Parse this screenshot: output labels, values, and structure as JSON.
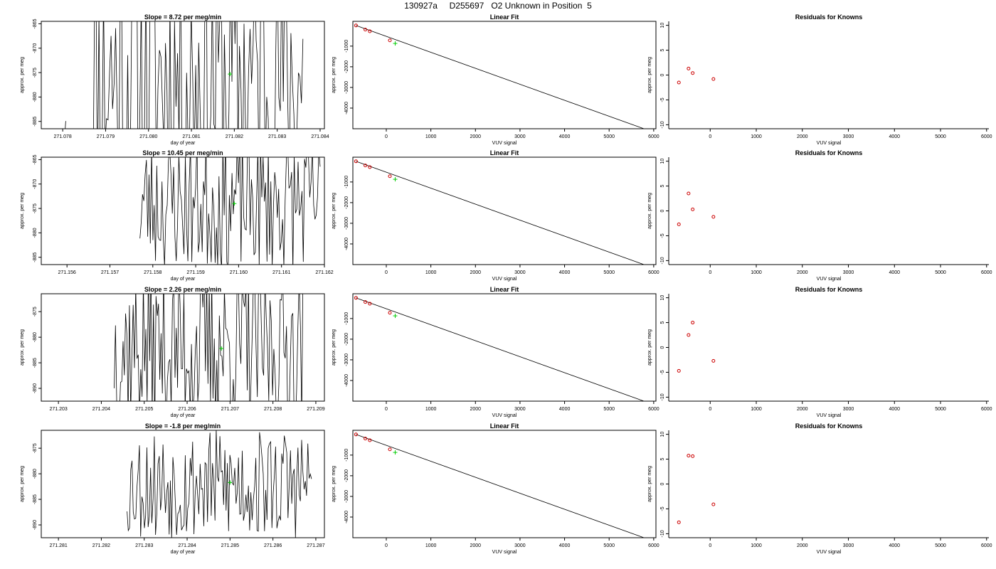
{
  "title": "130927a     D255697   O2 Unknown in Position  5",
  "colors": {
    "line": "#000000",
    "point_known": "#cc0000",
    "point_unknown": "#00cc00",
    "axis": "#000000"
  },
  "chart_data": [
    {
      "type": "line",
      "row": 0,
      "panel": "timeseries",
      "title": "Slope =  8.72  per meg/min",
      "xlabel": "day of year",
      "ylabel": "approx. per meg",
      "xlim": [
        271.0775,
        271.0841
      ],
      "ylim": [
        -886.5,
        -864.5
      ],
      "xticks": [
        271.078,
        271.079,
        271.08,
        271.081,
        271.082,
        271.083,
        271.084
      ],
      "xtick_labels": [
        "271.078",
        "271.079",
        "271.080",
        "271.081",
        "271.082",
        "271.083",
        "271.084"
      ],
      "yticks": [
        -865,
        -870,
        -875,
        -880,
        -885
      ],
      "ytick_labels": [
        "-865",
        "-870",
        "-875",
        "-880",
        "-885"
      ],
      "series": [
        {
          "x_start": 271.078,
          "x_end": 271.0836,
          "n": 160,
          "center": -876,
          "amp": 30,
          "seed": 11,
          "gaps": [
            [
              271.0781,
              271.0787
            ]
          ]
        }
      ],
      "marker": {
        "x": 271.0819,
        "y": -875.3
      }
    },
    {
      "type": "scatter",
      "row": 0,
      "panel": "fit",
      "title": "Linear Fit",
      "xlabel": "VUV signal",
      "ylabel": "approx. per meg",
      "xlim": [
        -750,
        6050
      ],
      "ylim": [
        -5000,
        200
      ],
      "xticks": [
        0,
        1000,
        2000,
        3000,
        4000,
        5000,
        6000
      ],
      "xtick_labels": [
        "0",
        "1000",
        "2000",
        "3000",
        "4000",
        "5000",
        "6000"
      ],
      "yticks": [
        -1000,
        -2000,
        -3000,
        -4000
      ],
      "ytick_labels": [
        "-1000",
        "-2000",
        "-3000",
        "-4000"
      ],
      "points": [
        {
          "x": -680,
          "y": 0
        },
        {
          "x": -470,
          "y": -200
        },
        {
          "x": -370,
          "y": -280
        },
        {
          "x": 80,
          "y": -720
        }
      ],
      "unknown": {
        "x": 200,
        "y": -870
      },
      "fit_line": {
        "x": [
          -680,
          5780
        ],
        "y": [
          0,
          -5000
        ]
      }
    },
    {
      "type": "scatter",
      "row": 0,
      "panel": "residuals",
      "title": "Residuals for Knowns",
      "xlabel": "VUV signal",
      "ylabel": "approx. per meg",
      "xlim": [
        -900,
        6050
      ],
      "ylim": [
        -10.8,
        10.8
      ],
      "xticks": [
        0,
        1000,
        2000,
        3000,
        4000,
        5000,
        6000
      ],
      "xtick_labels": [
        "0",
        "1000",
        "2000",
        "3000",
        "4000",
        "5000",
        "6000"
      ],
      "yticks": [
        10,
        5,
        0,
        -5,
        -10
      ],
      "ytick_labels": [
        "10",
        "5",
        "0",
        "-5",
        "-10"
      ],
      "points": [
        {
          "x": -680,
          "y": -1.5
        },
        {
          "x": -470,
          "y": 1.3
        },
        {
          "x": -380,
          "y": 0.4
        },
        {
          "x": 70,
          "y": -0.8
        }
      ]
    },
    {
      "type": "line",
      "row": 1,
      "panel": "timeseries",
      "title": "Slope =  10.45  per meg/min",
      "xlabel": "day of year",
      "ylabel": "approx. per meg",
      "xlim": [
        271.1554,
        271.162
      ],
      "ylim": [
        -886.5,
        -864.5
      ],
      "xticks": [
        271.156,
        271.157,
        271.158,
        271.159,
        271.16,
        271.161,
        271.162
      ],
      "xtick_labels": [
        "271.156",
        "271.157",
        "271.158",
        "271.159",
        "271.160",
        "271.161",
        "271.162"
      ],
      "yticks": [
        -865,
        -870,
        -875,
        -880,
        -885
      ],
      "ytick_labels": [
        "-865",
        "-870",
        "-875",
        "-880",
        "-885"
      ],
      "series": [
        {
          "x_start": 271.1577,
          "x_end": 271.1619,
          "n": 140,
          "center": -874,
          "amp": 14,
          "seed": 23,
          "gaps": []
        }
      ],
      "marker": {
        "x": 271.1599,
        "y": -874.0
      }
    },
    {
      "type": "scatter",
      "row": 1,
      "panel": "fit",
      "title": "Linear Fit",
      "xlabel": "VUV signal",
      "ylabel": "approx. per meg",
      "xlim": [
        -750,
        6050
      ],
      "ylim": [
        -5000,
        200
      ],
      "xticks": [
        0,
        1000,
        2000,
        3000,
        4000,
        5000,
        6000
      ],
      "xtick_labels": [
        "0",
        "1000",
        "2000",
        "3000",
        "4000",
        "5000",
        "6000"
      ],
      "yticks": [
        -1000,
        -2000,
        -3000,
        -4000
      ],
      "ytick_labels": [
        "-1000",
        "-2000",
        "-3000",
        "-4000"
      ],
      "points": [
        {
          "x": -680,
          "y": 0
        },
        {
          "x": -470,
          "y": -200
        },
        {
          "x": -370,
          "y": -280
        },
        {
          "x": 80,
          "y": -720
        }
      ],
      "unknown": {
        "x": 200,
        "y": -870
      },
      "fit_line": {
        "x": [
          -680,
          5780
        ],
        "y": [
          0,
          -5000
        ]
      }
    },
    {
      "type": "scatter",
      "row": 1,
      "panel": "residuals",
      "title": "Residuals for Knowns",
      "xlabel": "VUV signal",
      "ylabel": "approx. per meg",
      "xlim": [
        -900,
        6050
      ],
      "ylim": [
        -10.8,
        10.8
      ],
      "xticks": [
        0,
        1000,
        2000,
        3000,
        4000,
        5000,
        6000
      ],
      "xtick_labels": [
        "0",
        "1000",
        "2000",
        "3000",
        "4000",
        "5000",
        "6000"
      ],
      "yticks": [
        10,
        5,
        0,
        -5,
        -10
      ],
      "ytick_labels": [
        "10",
        "5",
        "0",
        "-5",
        "-10"
      ],
      "points": [
        {
          "x": -680,
          "y": -2.7
        },
        {
          "x": -470,
          "y": 3.5
        },
        {
          "x": -380,
          "y": 0.3
        },
        {
          "x": 70,
          "y": -1.2
        }
      ]
    },
    {
      "type": "line",
      "row": 2,
      "panel": "timeseries",
      "title": "Slope =  2.26  per meg/min",
      "xlabel": "day of year",
      "ylabel": "approx. per meg",
      "xlim": [
        271.2026,
        271.2092
      ],
      "ylim": [
        -892.5,
        -871.5
      ],
      "xticks": [
        271.203,
        271.204,
        271.205,
        271.206,
        271.207,
        271.208,
        271.209
      ],
      "xtick_labels": [
        "271.203",
        "271.204",
        "271.205",
        "271.206",
        "271.207",
        "271.208",
        "271.209"
      ],
      "yticks": [
        -875,
        -880,
        -885,
        -890
      ],
      "ytick_labels": [
        "-875",
        "-880",
        "-885",
        "-890"
      ],
      "series": [
        {
          "x_start": 271.2043,
          "x_end": 271.2087,
          "n": 150,
          "center": -882,
          "amp": 16,
          "seed": 37,
          "gaps": []
        }
      ],
      "marker": {
        "x": 271.2068,
        "y": -882.2
      }
    },
    {
      "type": "scatter",
      "row": 2,
      "panel": "fit",
      "title": "Linear Fit",
      "xlabel": "VUV signal",
      "ylabel": "approx. per meg",
      "xlim": [
        -750,
        6050
      ],
      "ylim": [
        -5000,
        200
      ],
      "xticks": [
        0,
        1000,
        2000,
        3000,
        4000,
        5000,
        6000
      ],
      "xtick_labels": [
        "0",
        "1000",
        "2000",
        "3000",
        "4000",
        "5000",
        "6000"
      ],
      "yticks": [
        -1000,
        -2000,
        -3000,
        -4000
      ],
      "ytick_labels": [
        "-1000",
        "-2000",
        "-3000",
        "-4000"
      ],
      "points": [
        {
          "x": -680,
          "y": 0
        },
        {
          "x": -470,
          "y": -200
        },
        {
          "x": -370,
          "y": -280
        },
        {
          "x": 80,
          "y": -720
        }
      ],
      "unknown": {
        "x": 200,
        "y": -870
      },
      "fit_line": {
        "x": [
          -680,
          5780
        ],
        "y": [
          0,
          -5000
        ]
      }
    },
    {
      "type": "scatter",
      "row": 2,
      "panel": "residuals",
      "title": "Residuals for Knowns",
      "xlabel": "VUV signal",
      "ylabel": "approx. per meg",
      "xlim": [
        -900,
        6050
      ],
      "ylim": [
        -10.8,
        10.8
      ],
      "xticks": [
        0,
        1000,
        2000,
        3000,
        4000,
        5000,
        6000
      ],
      "xtick_labels": [
        "0",
        "1000",
        "2000",
        "3000",
        "4000",
        "5000",
        "6000"
      ],
      "yticks": [
        10,
        5,
        0,
        -5,
        -10
      ],
      "ytick_labels": [
        "10",
        "5",
        "0",
        "-5",
        "-10"
      ],
      "points": [
        {
          "x": -680,
          "y": -4.7
        },
        {
          "x": -470,
          "y": 2.5
        },
        {
          "x": -380,
          "y": 5.0
        },
        {
          "x": 70,
          "y": -2.7
        }
      ]
    },
    {
      "type": "line",
      "row": 3,
      "panel": "timeseries",
      "title": "Slope =  -1.8  per meg/min",
      "xlabel": "day of year",
      "ylabel": "approx. per meg",
      "xlim": [
        271.2806,
        271.2872
      ],
      "ylim": [
        -892.5,
        -871.5
      ],
      "xticks": [
        271.281,
        271.282,
        271.283,
        271.284,
        271.285,
        271.286,
        271.287
      ],
      "xtick_labels": [
        "271.281",
        "271.282",
        "271.283",
        "271.284",
        "271.285",
        "271.286",
        "271.287"
      ],
      "yticks": [
        -875,
        -880,
        -885,
        -890
      ],
      "ytick_labels": [
        "-875",
        "-880",
        "-885",
        "-890"
      ],
      "series": [
        {
          "x_start": 271.2826,
          "x_end": 271.2869,
          "n": 150,
          "center": -882,
          "amp": 11,
          "seed": 53,
          "gaps": []
        }
      ],
      "marker": {
        "x": 271.285,
        "y": -881.7
      }
    },
    {
      "type": "scatter",
      "row": 3,
      "panel": "fit",
      "title": "Linear Fit",
      "xlabel": "VUV signal",
      "ylabel": "approx. per meg",
      "xlim": [
        -750,
        6050
      ],
      "ylim": [
        -5000,
        200
      ],
      "xticks": [
        0,
        1000,
        2000,
        3000,
        4000,
        5000,
        6000
      ],
      "xtick_labels": [
        "0",
        "1000",
        "2000",
        "3000",
        "4000",
        "5000",
        "6000"
      ],
      "yticks": [
        -1000,
        -2000,
        -3000,
        -4000
      ],
      "ytick_labels": [
        "-1000",
        "-2000",
        "-3000",
        "-4000"
      ],
      "points": [
        {
          "x": -680,
          "y": 0
        },
        {
          "x": -470,
          "y": -200
        },
        {
          "x": -370,
          "y": -280
        },
        {
          "x": 80,
          "y": -720
        }
      ],
      "unknown": {
        "x": 200,
        "y": -870
      },
      "fit_line": {
        "x": [
          -680,
          5780
        ],
        "y": [
          0,
          -5000
        ]
      }
    },
    {
      "type": "scatter",
      "row": 3,
      "panel": "residuals",
      "title": "Residuals for Knowns",
      "xlabel": "VUV signal",
      "ylabel": "approx. per meg",
      "xlim": [
        -900,
        6050
      ],
      "ylim": [
        -10.8,
        10.8
      ],
      "xticks": [
        0,
        1000,
        2000,
        3000,
        4000,
        5000,
        6000
      ],
      "xtick_labels": [
        "0",
        "1000",
        "2000",
        "3000",
        "4000",
        "5000",
        "6000"
      ],
      "yticks": [
        10,
        5,
        0,
        -5,
        -10
      ],
      "ytick_labels": [
        "10",
        "5",
        "0",
        "-5",
        "-10"
      ],
      "points": [
        {
          "x": -680,
          "y": -7.7
        },
        {
          "x": -470,
          "y": 5.7
        },
        {
          "x": -380,
          "y": 5.6
        },
        {
          "x": 70,
          "y": -4.1
        }
      ]
    }
  ]
}
